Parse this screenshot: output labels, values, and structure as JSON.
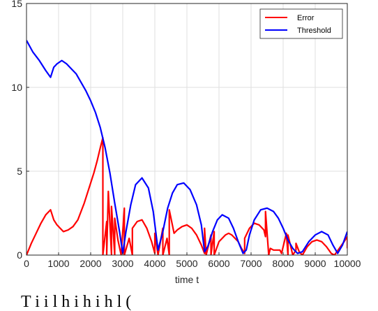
{
  "chart_data": {
    "type": "line",
    "xlabel": "time t",
    "ylabel": "",
    "xlim": [
      0,
      10000
    ],
    "ylim": [
      0,
      15
    ],
    "xticks": [
      "0",
      "1000",
      "2000",
      "3000",
      "4000",
      "5000",
      "6000",
      "7000",
      "8000",
      "9000",
      "10000"
    ],
    "yticks": [
      "0",
      "5",
      "10",
      "15"
    ],
    "grid": true,
    "legend_position": "top-right",
    "series": [
      {
        "name": "Error",
        "color": "#ff0000",
        "x": [
          0,
          150,
          300,
          450,
          600,
          750,
          850,
          950,
          1050,
          1150,
          1300,
          1450,
          1600,
          1700,
          1800,
          1900,
          2000,
          2100,
          2200,
          2300,
          2380,
          2380,
          2500,
          2500,
          2550,
          2650,
          2650,
          2750,
          2750,
          2850,
          2950,
          3050,
          3050,
          3200,
          3300,
          3300,
          3450,
          3600,
          3750,
          3900,
          4000,
          4000,
          4100,
          4250,
          4250,
          4380,
          4450,
          4450,
          4600,
          4700,
          4850,
          5000,
          5150,
          5300,
          5450,
          5550,
          5550,
          5600,
          5750,
          5750,
          5850,
          5850,
          6000,
          6100,
          6200,
          6300,
          6400,
          6500,
          6600,
          6700,
          6800,
          6800,
          6950,
          7100,
          7250,
          7400,
          7450,
          7450,
          7550,
          7600,
          7700,
          7800,
          7900,
          7950,
          8100,
          8150,
          8150,
          8300,
          8400,
          8400,
          8500,
          8600,
          8750,
          8900,
          9050,
          9200,
          9350,
          9500,
          9600,
          9750,
          9900,
          10000,
          10000
        ],
        "y": [
          0,
          0.7,
          1.3,
          1.9,
          2.4,
          2.7,
          2.1,
          1.8,
          1.6,
          1.4,
          1.5,
          1.7,
          2.1,
          2.6,
          3.1,
          3.7,
          4.3,
          4.9,
          5.6,
          6.4,
          7.0,
          0,
          2.0,
          0,
          3.8,
          0,
          2.9,
          0,
          2.2,
          0.9,
          0,
          2.8,
          0,
          1.0,
          0,
          1.6,
          2.0,
          2.1,
          1.6,
          0.8,
          0.1,
          1.3,
          0,
          1.6,
          0,
          1.0,
          0,
          2.7,
          1.3,
          1.5,
          1.7,
          1.8,
          1.6,
          1.2,
          0.6,
          0.1,
          1.6,
          0,
          1.2,
          0,
          1.4,
          0,
          0.8,
          1.0,
          1.2,
          1.3,
          1.2,
          1.0,
          0.8,
          0.4,
          0.1,
          1.0,
          1.6,
          1.9,
          1.8,
          1.5,
          1.1,
          2.6,
          0,
          0.4,
          0.3,
          0.3,
          0.3,
          0.1,
          1.3,
          0,
          1.2,
          0,
          0.3,
          0.7,
          0.2,
          0,
          0.5,
          0.8,
          0.9,
          0.8,
          0.5,
          0.1,
          0,
          0.4,
          0.8,
          1.1,
          0.4
        ]
      },
      {
        "name": "Threshold",
        "color": "#0000ff",
        "x": [
          0,
          200,
          400,
          600,
          750,
          850,
          950,
          1100,
          1250,
          1400,
          1550,
          1700,
          1850,
          2000,
          2150,
          2300,
          2450,
          2600,
          2750,
          2900,
          3000,
          3100,
          3250,
          3400,
          3600,
          3800,
          3950,
          4100,
          4250,
          4400,
          4550,
          4700,
          4900,
          5100,
          5300,
          5450,
          5550,
          5650,
          5800,
          5950,
          6100,
          6300,
          6450,
          6600,
          6750,
          6850,
          6950,
          7100,
          7300,
          7500,
          7700,
          7850,
          8000,
          8150,
          8300,
          8450,
          8600,
          8800,
          9000,
          9200,
          9400,
          9550,
          9700,
          9850,
          10000
        ],
        "y": [
          12.8,
          12.1,
          11.6,
          11.0,
          10.6,
          11.2,
          11.4,
          11.6,
          11.4,
          11.1,
          10.8,
          10.3,
          9.8,
          9.2,
          8.5,
          7.6,
          6.4,
          4.9,
          3.1,
          1.4,
          0.1,
          1.4,
          3.0,
          4.2,
          4.6,
          4.0,
          2.6,
          0.3,
          1.4,
          2.8,
          3.7,
          4.2,
          4.3,
          3.9,
          3.0,
          1.8,
          0.2,
          0.5,
          1.4,
          2.1,
          2.4,
          2.2,
          1.6,
          0.8,
          0.1,
          0.3,
          1.2,
          2.1,
          2.7,
          2.8,
          2.6,
          2.2,
          1.6,
          0.9,
          0.4,
          0.1,
          0.2,
          0.8,
          1.2,
          1.4,
          1.2,
          0.6,
          0.1,
          0.6,
          1.4
        ]
      }
    ]
  },
  "caption": "T   i   i   l   h   i    h i    h            l       ("
}
